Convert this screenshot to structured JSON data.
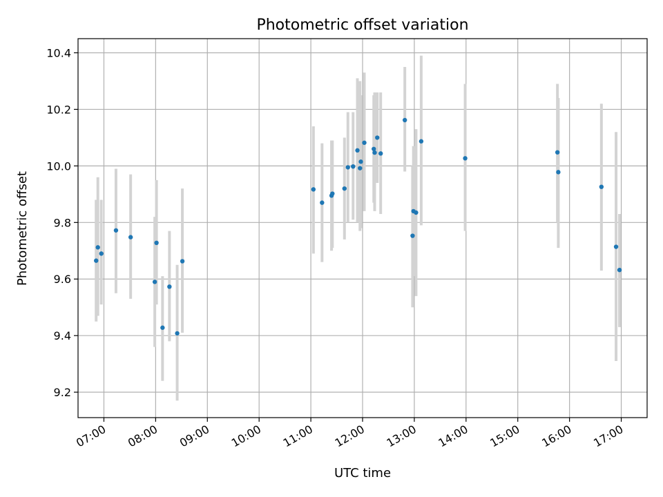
{
  "chart_data": {
    "type": "scatter",
    "title": "Photometric offset variation",
    "xlabel": "UTC time",
    "ylabel": "Photometric offset",
    "x_unit": "UTC time",
    "xlim": [
      "06:30",
      "17:30"
    ],
    "ylim": [
      9.11,
      10.45
    ],
    "grid": true,
    "x_ticks": [
      "07:00",
      "08:00",
      "09:00",
      "10:00",
      "11:00",
      "12:00",
      "13:00",
      "14:00",
      "15:00",
      "16:00",
      "17:00"
    ],
    "y_ticks": [
      9.2,
      9.4,
      9.6,
      9.8,
      10.0,
      10.2,
      10.4
    ],
    "colors": {
      "point": "#1f77b4",
      "errorbar": "#d3d3d3"
    },
    "series": [
      {
        "points": [
          {
            "x": "06:51",
            "y": 9.665,
            "ylo": 9.45,
            "yhi": 9.88
          },
          {
            "x": "06:53",
            "y": 9.712,
            "ylo": 9.47,
            "yhi": 9.96
          },
          {
            "x": "06:57",
            "y": 9.69,
            "ylo": 9.51,
            "yhi": 9.88
          },
          {
            "x": "07:14",
            "y": 9.772,
            "ylo": 9.55,
            "yhi": 9.99
          },
          {
            "x": "07:31",
            "y": 9.748,
            "ylo": 9.53,
            "yhi": 9.97
          },
          {
            "x": "07:59",
            "y": 9.59,
            "ylo": 9.36,
            "yhi": 9.82
          },
          {
            "x": "08:01",
            "y": 9.728,
            "ylo": 9.51,
            "yhi": 9.95
          },
          {
            "x": "08:08",
            "y": 9.428,
            "ylo": 9.24,
            "yhi": 9.61
          },
          {
            "x": "08:16",
            "y": 9.573,
            "ylo": 9.38,
            "yhi": 9.77
          },
          {
            "x": "08:25",
            "y": 9.408,
            "ylo": 9.17,
            "yhi": 9.65
          },
          {
            "x": "08:31",
            "y": 9.663,
            "ylo": 9.41,
            "yhi": 9.92
          },
          {
            "x": "11:03",
            "y": 9.917,
            "ylo": 9.69,
            "yhi": 10.14
          },
          {
            "x": "11:13",
            "y": 9.87,
            "ylo": 9.66,
            "yhi": 10.08
          },
          {
            "x": "11:24",
            "y": 9.895,
            "ylo": 9.7,
            "yhi": 10.09
          },
          {
            "x": "11:25",
            "y": 9.902,
            "ylo": 9.71,
            "yhi": 10.09
          },
          {
            "x": "11:39",
            "y": 9.92,
            "ylo": 9.74,
            "yhi": 10.1
          },
          {
            "x": "11:43",
            "y": 9.995,
            "ylo": 9.8,
            "yhi": 10.19
          },
          {
            "x": "11:49",
            "y": 9.998,
            "ylo": 9.81,
            "yhi": 10.19
          },
          {
            "x": "11:54",
            "y": 10.055,
            "ylo": 9.8,
            "yhi": 10.31
          },
          {
            "x": "11:57",
            "y": 9.992,
            "ylo": 9.77,
            "yhi": 10.3
          },
          {
            "x": "11:58",
            "y": 10.015,
            "ylo": 9.78,
            "yhi": 10.25
          },
          {
            "x": "12:02",
            "y": 10.082,
            "ylo": 9.84,
            "yhi": 10.33
          },
          {
            "x": "12:13",
            "y": 10.06,
            "ylo": 9.87,
            "yhi": 10.25
          },
          {
            "x": "12:14",
            "y": 10.047,
            "ylo": 9.84,
            "yhi": 10.26
          },
          {
            "x": "12:17",
            "y": 10.1,
            "ylo": 9.94,
            "yhi": 10.26
          },
          {
            "x": "12:21",
            "y": 10.044,
            "ylo": 9.83,
            "yhi": 10.26
          },
          {
            "x": "12:49",
            "y": 10.162,
            "ylo": 9.98,
            "yhi": 10.35
          },
          {
            "x": "12:58",
            "y": 9.753,
            "ylo": 9.5,
            "yhi": 10.0
          },
          {
            "x": "12:59",
            "y": 9.84,
            "ylo": 9.61,
            "yhi": 10.07
          },
          {
            "x": "13:02",
            "y": 9.835,
            "ylo": 9.54,
            "yhi": 10.13
          },
          {
            "x": "13:08",
            "y": 10.087,
            "ylo": 9.79,
            "yhi": 10.39
          },
          {
            "x": "13:59",
            "y": 10.027,
            "ylo": 9.77,
            "yhi": 10.29
          },
          {
            "x": "15:46",
            "y": 10.048,
            "ylo": 9.8,
            "yhi": 10.29
          },
          {
            "x": "15:47",
            "y": 9.978,
            "ylo": 9.71,
            "yhi": 10.24
          },
          {
            "x": "16:37",
            "y": 9.926,
            "ylo": 9.63,
            "yhi": 10.22
          },
          {
            "x": "16:54",
            "y": 9.714,
            "ylo": 9.31,
            "yhi": 10.12
          },
          {
            "x": "16:58",
            "y": 9.632,
            "ylo": 9.43,
            "yhi": 9.83
          }
        ]
      }
    ]
  }
}
